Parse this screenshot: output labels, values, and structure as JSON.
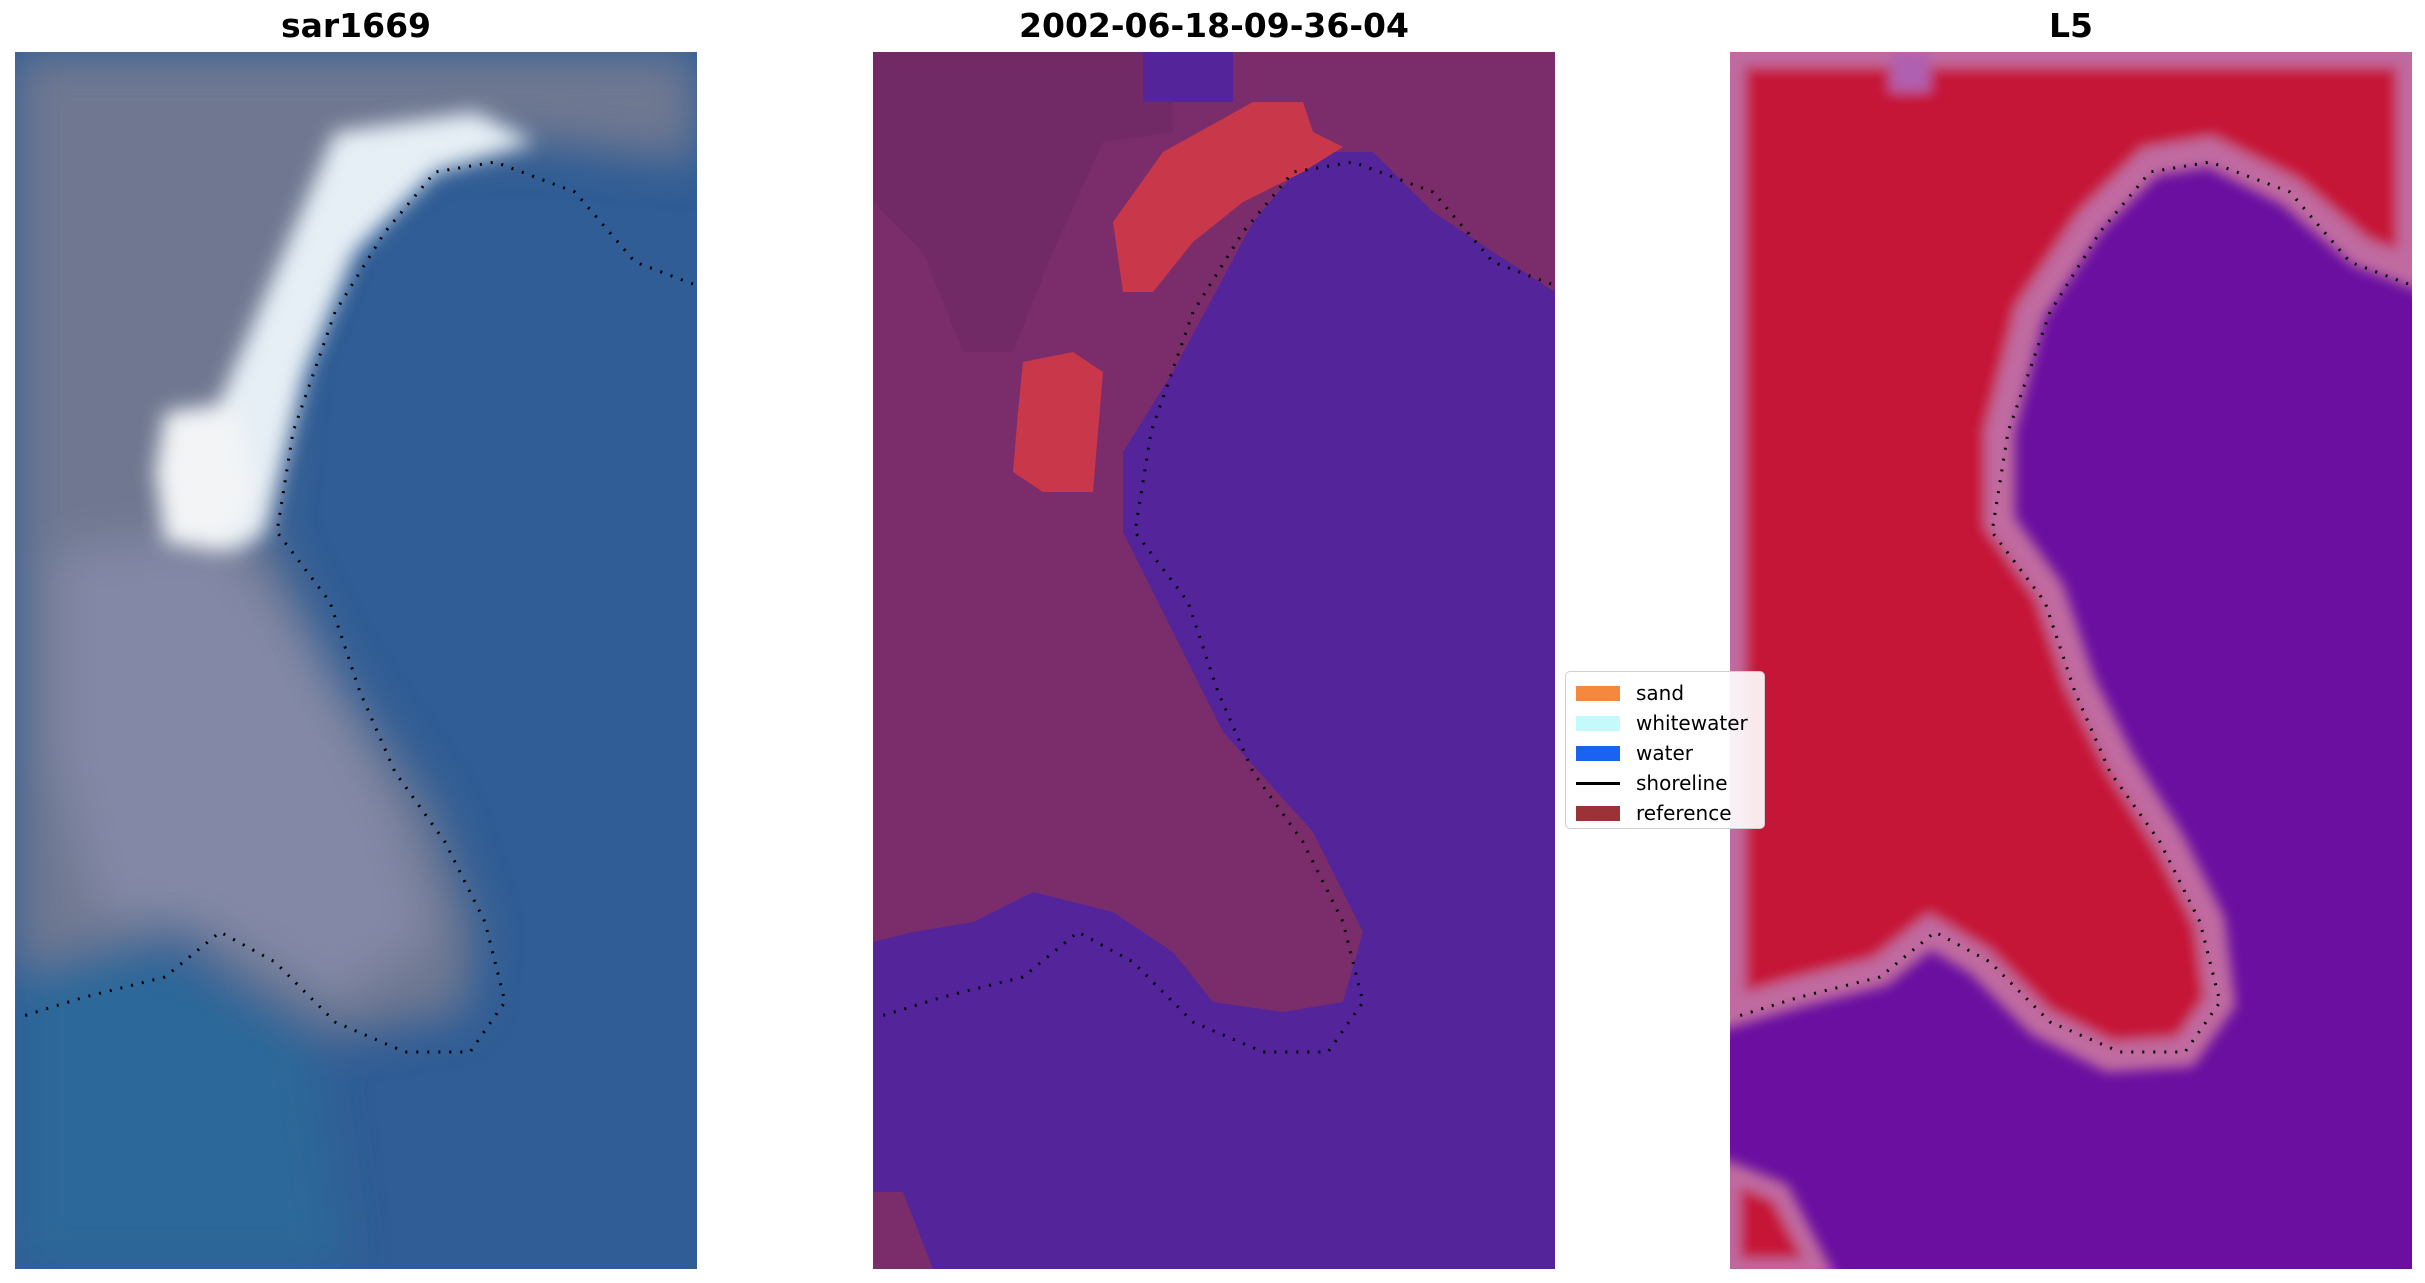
{
  "panels": [
    {
      "title": "sar1669",
      "rendering": "rgb-composite"
    },
    {
      "title": "2002-06-18-09-36-04",
      "rendering": "classified"
    },
    {
      "title": "L5",
      "rendering": "index-map"
    }
  ],
  "legend": {
    "placement": "center, between panel 2 and panel 3",
    "items": [
      {
        "label": "sand",
        "color": "#f4883f",
        "type": "patch"
      },
      {
        "label": "whitewater",
        "color": "#c4fafa",
        "type": "patch"
      },
      {
        "label": "water",
        "color": "#1a62f0",
        "type": "patch"
      },
      {
        "label": "shoreline",
        "color": "#000000",
        "type": "line"
      },
      {
        "label": "reference",
        "color": "#9b3236",
        "type": "patch"
      }
    ]
  },
  "colors": {
    "rgb_land": "#6f7891",
    "rgb_water": "#2f5f96",
    "rgb_whitewater": "#e6eff5",
    "class_land": "#7a2d6a",
    "class_water": "#53249a",
    "class_sand_overlay": "#c8384a",
    "index_land": "#c51338",
    "index_water": "#6a0fa0",
    "index_edge": "#c06aa0",
    "shoreline": "#000000"
  }
}
